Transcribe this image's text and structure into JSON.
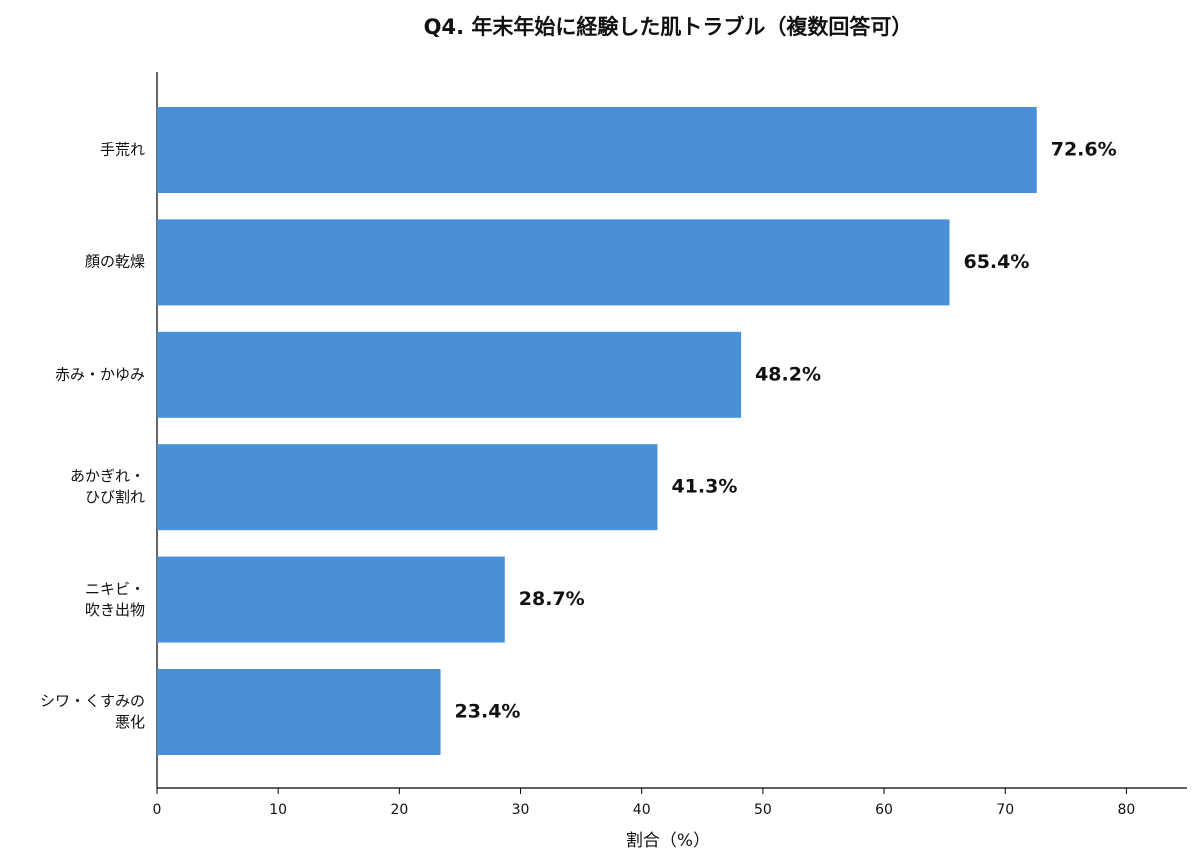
{
  "chart_data": {
    "type": "bar",
    "orientation": "horizontal",
    "title": "Q4. 年末年始に経験した肌トラブル（複数回答可）",
    "x_label": "割合（%）",
    "categories": [
      "手荒れ",
      "顔の乾燥",
      "赤み・かゆみ",
      "あかぎれ・\nひび割れ",
      "ニキビ・\n吹き出物",
      "シワ・くすみの\n悪化"
    ],
    "values": [
      72.6,
      65.4,
      48.2,
      41.3,
      28.7,
      23.4
    ],
    "value_labels": [
      "72.6%",
      "65.4%",
      "48.2%",
      "41.3%",
      "28.7%",
      "23.4%"
    ],
    "color": "#4a90d9",
    "xlim": [
      0,
      85
    ],
    "xticks": [
      0,
      10,
      20,
      30,
      40,
      50,
      60,
      70,
      80
    ]
  }
}
